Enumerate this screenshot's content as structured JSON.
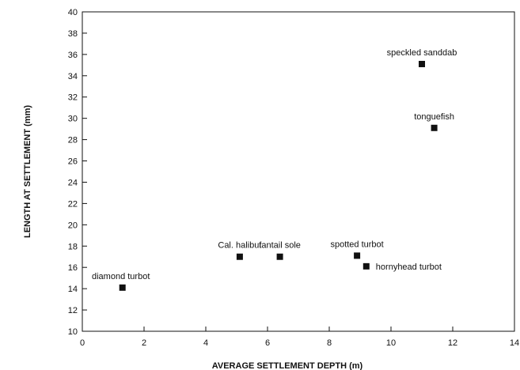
{
  "chart_data": {
    "type": "scatter",
    "title": "",
    "xlabel": "AVERAGE SETTLEMENT DEPTH (m)",
    "ylabel": "LENGTH AT SETTLEMENT (mm)",
    "xlim": [
      0,
      14
    ],
    "ylim": [
      10,
      40
    ],
    "x_ticks": [
      0,
      2,
      4,
      6,
      8,
      10,
      12,
      14
    ],
    "y_ticks": [
      10,
      12,
      14,
      16,
      18,
      20,
      22,
      24,
      26,
      28,
      30,
      32,
      34,
      36,
      38,
      40
    ],
    "x_tick_labels": [
      "0",
      "2",
      "4",
      "6",
      "8",
      "10",
      "12",
      "14"
    ],
    "grid": false,
    "marker": "square",
    "points": [
      {
        "label": "diamond turbot",
        "x": 1.3,
        "y": 14.1
      },
      {
        "label": "Cal. halibut",
        "x": 5.1,
        "y": 17.0
      },
      {
        "label": "fantail sole",
        "x": 6.4,
        "y": 17.0
      },
      {
        "label": "spotted turbot",
        "x": 8.9,
        "y": 17.1
      },
      {
        "label": "hornyhead turbot",
        "x": 9.2,
        "y": 16.1
      },
      {
        "label": "speckled sanddab",
        "x": 11.0,
        "y": 35.1
      },
      {
        "label": "tonguefish",
        "x": 11.4,
        "y": 29.1
      }
    ]
  }
}
